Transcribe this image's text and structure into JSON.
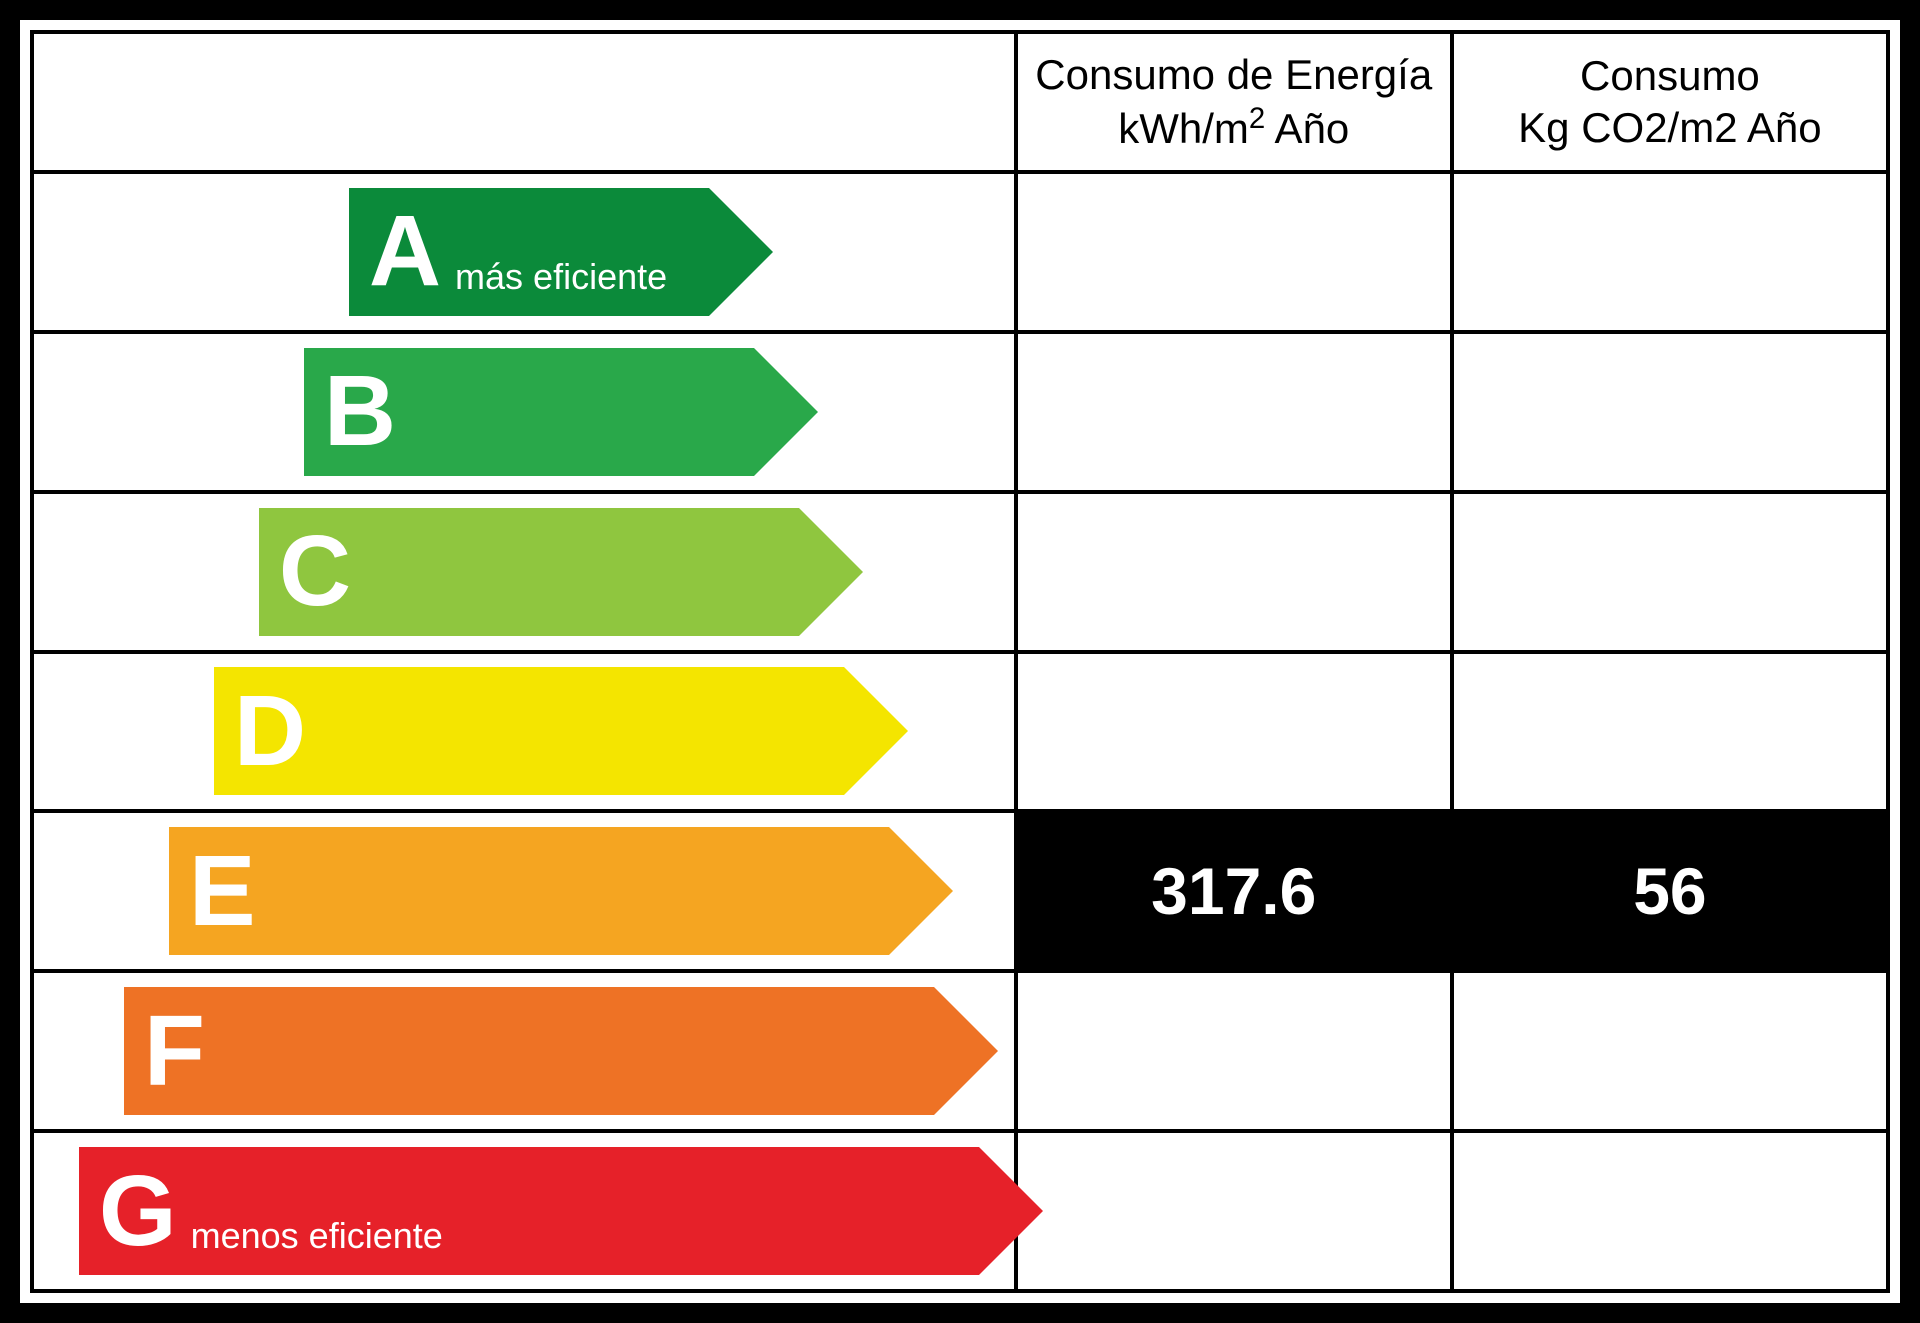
{
  "header": {
    "col1_line1": "Consumo de Energía",
    "col1_line2_pre": "kWh/m",
    "col1_line2_sup": "2",
    "col1_line2_post": " Año",
    "col2_line1": "Consumo",
    "col2_line2": "Kg CO2/m2 Año"
  },
  "layout": {
    "arrow_col_width_pct": 53,
    "val_col_width_pct": 23.5,
    "header_row_height": 140,
    "data_row_height": 158,
    "arrow_base_width": 360,
    "arrow_width_step": 90,
    "arrow_height": 128,
    "arrow_head": 64,
    "letter_fontsize": 100,
    "sub_fontsize": 36,
    "value_fontsize": 66,
    "header_fontsize": 42,
    "border_color": "#000000",
    "background_color": "#ffffff",
    "active_cell_bg": "#000000",
    "active_cell_fg": "#ffffff",
    "text_color": "#ffffff"
  },
  "rows": [
    {
      "letter": "A",
      "sub": "más eficiente",
      "color": "#0b8a3a",
      "kwh": "",
      "co2": "",
      "active": false
    },
    {
      "letter": "B",
      "sub": "",
      "color": "#29a84a",
      "kwh": "",
      "co2": "",
      "active": false
    },
    {
      "letter": "C",
      "sub": "",
      "color": "#8fc63f",
      "kwh": "",
      "co2": "",
      "active": false
    },
    {
      "letter": "D",
      "sub": "",
      "color": "#f4e500",
      "kwh": "",
      "co2": "",
      "active": false
    },
    {
      "letter": "E",
      "sub": "",
      "color": "#f5a521",
      "kwh": "317.6",
      "co2": "56",
      "active": true
    },
    {
      "letter": "F",
      "sub": "",
      "color": "#ee7225",
      "kwh": "",
      "co2": "",
      "active": false
    },
    {
      "letter": "G",
      "sub": "menos eficiente",
      "color": "#e62129",
      "kwh": "",
      "co2": "",
      "active": false
    }
  ]
}
